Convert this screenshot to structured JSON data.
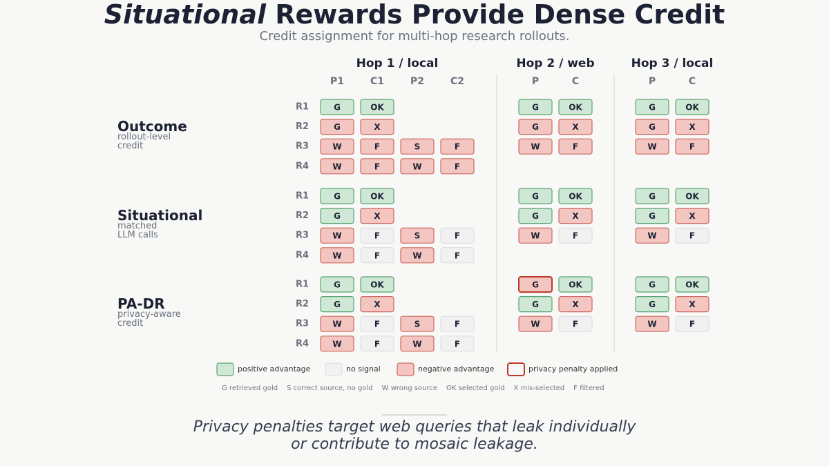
{
  "title": {
    "italic": "Situational",
    "rest": "Rewards Provide Dense Credit"
  },
  "subtitle": "Credit assignment for multi-hop research rollouts.",
  "hops": [
    {
      "label": "Hop 1 / local",
      "columns": [
        "P1",
        "C1",
        "P2",
        "C2"
      ]
    },
    {
      "label": "Hop 2 / web",
      "columns": [
        "P",
        "C"
      ]
    },
    {
      "label": "Hop 3 / local",
      "columns": [
        "P",
        "C"
      ]
    }
  ],
  "sections": [
    {
      "name": "Outcome",
      "desc": [
        "rollout-level",
        "credit"
      ],
      "rows": [
        {
          "label": "R1",
          "cells": [
            [
              {
                "t": "G",
                "kind": "pos"
              },
              {
                "t": "OK",
                "kind": "pos"
              }
            ],
            [
              {
                "t": "G",
                "kind": "pos"
              },
              {
                "t": "OK",
                "kind": "pos"
              }
            ],
            [
              {
                "t": "G",
                "kind": "pos"
              },
              {
                "t": "OK",
                "kind": "pos"
              }
            ]
          ]
        },
        {
          "label": "R2",
          "cells": [
            [
              {
                "t": "G",
                "kind": "neg"
              },
              {
                "t": "X",
                "kind": "neg"
              }
            ],
            [
              {
                "t": "G",
                "kind": "neg"
              },
              {
                "t": "X",
                "kind": "neg"
              }
            ],
            [
              {
                "t": "G",
                "kind": "neg"
              },
              {
                "t": "X",
                "kind": "neg"
              }
            ]
          ]
        },
        {
          "label": "R3",
          "cells": [
            [
              {
                "t": "W",
                "kind": "neg"
              },
              {
                "t": "F",
                "kind": "neg"
              },
              {
                "t": "S",
                "kind": "neg"
              },
              {
                "t": "F",
                "kind": "neg"
              }
            ],
            [
              {
                "t": "W",
                "kind": "neg"
              },
              {
                "t": "F",
                "kind": "neg"
              }
            ],
            [
              {
                "t": "W",
                "kind": "neg"
              },
              {
                "t": "F",
                "kind": "neg"
              }
            ]
          ]
        },
        {
          "label": "R4",
          "cells": [
            [
              {
                "t": "W",
                "kind": "neg"
              },
              {
                "t": "F",
                "kind": "neg"
              },
              {
                "t": "W",
                "kind": "neg"
              },
              {
                "t": "F",
                "kind": "neg"
              }
            ],
            [],
            []
          ]
        }
      ]
    },
    {
      "name": "Situational",
      "desc": [
        "matched",
        "LLM calls"
      ],
      "rows": [
        {
          "label": "R1",
          "cells": [
            [
              {
                "t": "G",
                "kind": "pos"
              },
              {
                "t": "OK",
                "kind": "pos"
              }
            ],
            [
              {
                "t": "G",
                "kind": "pos"
              },
              {
                "t": "OK",
                "kind": "pos"
              }
            ],
            [
              {
                "t": "G",
                "kind": "pos"
              },
              {
                "t": "OK",
                "kind": "pos"
              }
            ]
          ]
        },
        {
          "label": "R2",
          "cells": [
            [
              {
                "t": "G",
                "kind": "pos"
              },
              {
                "t": "X",
                "kind": "neg"
              }
            ],
            [
              {
                "t": "G",
                "kind": "pos"
              },
              {
                "t": "X",
                "kind": "neg"
              }
            ],
            [
              {
                "t": "G",
                "kind": "pos"
              },
              {
                "t": "X",
                "kind": "neg"
              }
            ]
          ]
        },
        {
          "label": "R3",
          "cells": [
            [
              {
                "t": "W",
                "kind": "neg"
              },
              {
                "t": "F",
                "kind": "none"
              },
              {
                "t": "S",
                "kind": "neg"
              },
              {
                "t": "F",
                "kind": "none"
              }
            ],
            [
              {
                "t": "W",
                "kind": "neg"
              },
              {
                "t": "F",
                "kind": "none"
              }
            ],
            [
              {
                "t": "W",
                "kind": "neg"
              },
              {
                "t": "F",
                "kind": "none"
              }
            ]
          ]
        },
        {
          "label": "R4",
          "cells": [
            [
              {
                "t": "W",
                "kind": "neg"
              },
              {
                "t": "F",
                "kind": "none"
              },
              {
                "t": "W",
                "kind": "neg"
              },
              {
                "t": "F",
                "kind": "none"
              }
            ],
            [],
            []
          ]
        }
      ]
    },
    {
      "name": "PA-DR",
      "desc": [
        "privacy-aware",
        "credit"
      ],
      "rows": [
        {
          "label": "R1",
          "cells": [
            [
              {
                "t": "G",
                "kind": "pos"
              },
              {
                "t": "OK",
                "kind": "pos"
              }
            ],
            [
              {
                "t": "G",
                "kind": "neg",
                "penalty": true
              },
              {
                "t": "OK",
                "kind": "pos"
              }
            ],
            [
              {
                "t": "G",
                "kind": "pos"
              },
              {
                "t": "OK",
                "kind": "pos"
              }
            ]
          ]
        },
        {
          "label": "R2",
          "cells": [
            [
              {
                "t": "G",
                "kind": "pos"
              },
              {
                "t": "X",
                "kind": "neg"
              }
            ],
            [
              {
                "t": "G",
                "kind": "pos"
              },
              {
                "t": "X",
                "kind": "neg"
              }
            ],
            [
              {
                "t": "G",
                "kind": "pos"
              },
              {
                "t": "X",
                "kind": "neg"
              }
            ]
          ]
        },
        {
          "label": "R3",
          "cells": [
            [
              {
                "t": "W",
                "kind": "neg"
              },
              {
                "t": "F",
                "kind": "none"
              },
              {
                "t": "S",
                "kind": "neg"
              },
              {
                "t": "F",
                "kind": "none"
              }
            ],
            [
              {
                "t": "W",
                "kind": "neg"
              },
              {
                "t": "F",
                "kind": "none"
              }
            ],
            [
              {
                "t": "W",
                "kind": "neg"
              },
              {
                "t": "F",
                "kind": "none"
              }
            ]
          ]
        },
        {
          "label": "R4",
          "cells": [
            [
              {
                "t": "W",
                "kind": "neg"
              },
              {
                "t": "F",
                "kind": "none"
              },
              {
                "t": "W",
                "kind": "neg"
              },
              {
                "t": "F",
                "kind": "none"
              }
            ],
            [],
            []
          ]
        }
      ]
    }
  ],
  "legend": [
    {
      "label": "positive advantage",
      "kind": "pos"
    },
    {
      "label": "no signal",
      "kind": "none"
    },
    {
      "label": "negative advantage",
      "kind": "neg"
    },
    {
      "label": "privacy penalty applied",
      "kind": "penalty"
    }
  ],
  "key": [
    "G retrieved gold",
    "S correct source, no gold",
    "W wrong source",
    "OK selected gold",
    "X mis-selected",
    "F filtered"
  ],
  "footer": [
    "Privacy penalties target web queries that leak individually",
    "or contribute to mosaic leakage."
  ]
}
